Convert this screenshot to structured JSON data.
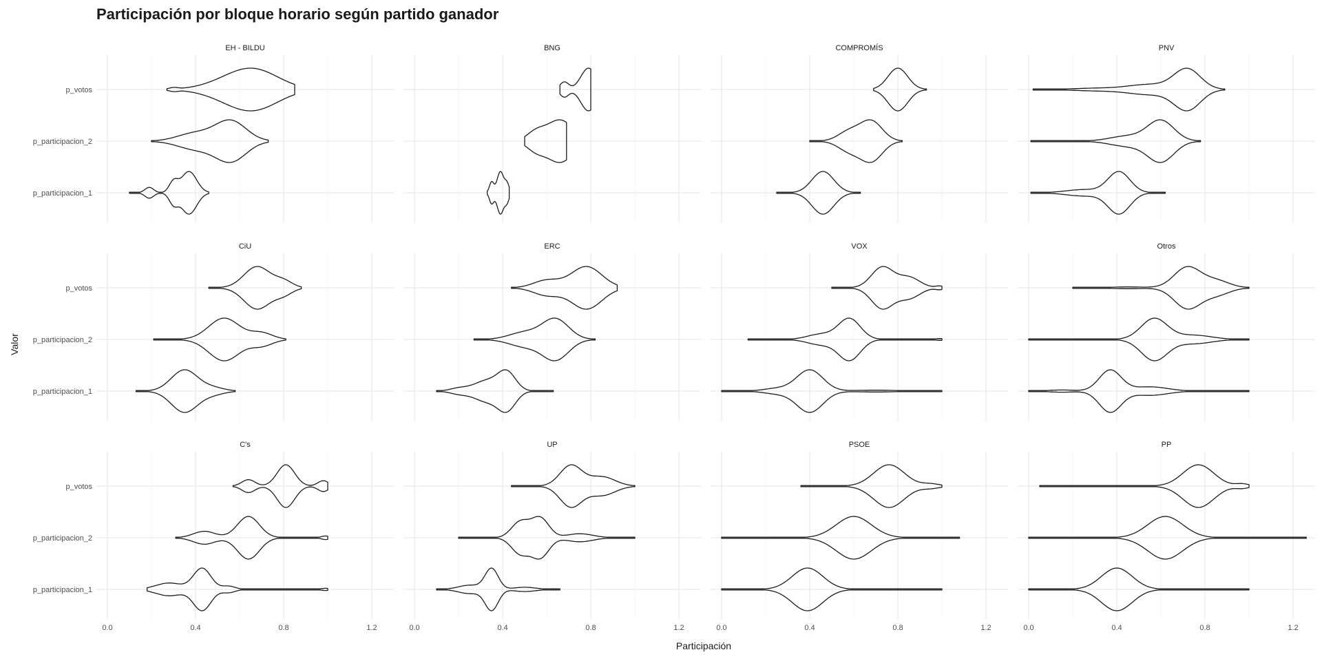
{
  "title": "Participación por bloque horario según partido ganador",
  "chart_data": {
    "type": "violin",
    "title": "Participación por bloque horario según partido ganador",
    "xlabel": "Participación",
    "ylabel": "Valor",
    "xlim": [
      -0.05,
      1.3
    ],
    "x_ticks": [
      "0.0",
      "0.4",
      "0.8",
      "1.2"
    ],
    "x_tick_values": [
      0.0,
      0.4,
      0.8,
      1.2
    ],
    "y_categories": [
      "p_votos",
      "p_participacion_2",
      "p_participacion_1"
    ],
    "grid": true,
    "legend": "none",
    "facets": [
      {
        "name": "EH - BILDU",
        "violins": {
          "p_votos": {
            "min": 0.27,
            "max": 0.85,
            "modes": [
              [
                0.68,
                0.11,
                1.0
              ],
              [
                0.58,
                0.12,
                0.6
              ],
              [
                0.3,
                0.02,
                0.1
              ]
            ]
          },
          "p_participacion_2": {
            "min": 0.2,
            "max": 0.73,
            "modes": [
              [
                0.56,
                0.07,
                1.0
              ],
              [
                0.4,
                0.08,
                0.4
              ]
            ]
          },
          "p_participacion_1": {
            "min": 0.1,
            "max": 0.46,
            "modes": [
              [
                0.37,
                0.035,
                1.0
              ],
              [
                0.3,
                0.02,
                0.5
              ],
              [
                0.19,
                0.02,
                0.25
              ]
            ]
          }
        }
      },
      {
        "name": "BNG",
        "violins": {
          "p_votos": {
            "min": 0.66,
            "max": 0.8,
            "modes": [
              [
                0.79,
                0.035,
                1.0
              ],
              [
                0.68,
                0.02,
                0.35
              ]
            ]
          },
          "p_participacion_2": {
            "min": 0.5,
            "max": 0.69,
            "modes": [
              [
                0.66,
                0.06,
                0.5
              ],
              [
                0.55,
                0.04,
                0.2
              ]
            ]
          },
          "p_participacion_1": {
            "min": 0.33,
            "max": 0.43,
            "modes": [
              [
                0.39,
                0.015,
                1.0
              ],
              [
                0.35,
                0.01,
                0.5
              ],
              [
                0.42,
                0.01,
                0.4
              ]
            ]
          }
        }
      },
      {
        "name": "COMPROMÍS",
        "violins": {
          "p_votos": {
            "min": 0.69,
            "max": 0.93,
            "modes": [
              [
                0.8,
                0.045,
                1.0
              ]
            ]
          },
          "p_participacion_2": {
            "min": 0.4,
            "max": 0.82,
            "modes": [
              [
                0.68,
                0.05,
                1.0
              ],
              [
                0.58,
                0.05,
                0.5
              ]
            ]
          },
          "p_participacion_1": {
            "min": 0.25,
            "max": 0.63,
            "modes": [
              [
                0.46,
                0.05,
                1.0
              ]
            ]
          }
        }
      },
      {
        "name": "PNV",
        "violins": {
          "p_votos": {
            "min": 0.02,
            "max": 0.89,
            "modes": [
              [
                0.72,
                0.06,
                1.0
              ],
              [
                0.55,
                0.1,
                0.25
              ],
              [
                0.3,
                0.1,
                0.06
              ]
            ]
          },
          "p_participacion_2": {
            "min": 0.01,
            "max": 0.78,
            "modes": [
              [
                0.6,
                0.06,
                1.0
              ],
              [
                0.45,
                0.08,
                0.25
              ]
            ]
          },
          "p_participacion_1": {
            "min": 0.01,
            "max": 0.62,
            "modes": [
              [
                0.41,
                0.05,
                1.0
              ],
              [
                0.25,
                0.08,
                0.15
              ]
            ]
          }
        }
      },
      {
        "name": "CiU",
        "violins": {
          "p_votos": {
            "min": 0.46,
            "max": 0.88,
            "modes": [
              [
                0.68,
                0.06,
                1.0
              ],
              [
                0.8,
                0.04,
                0.3
              ]
            ]
          },
          "p_participacion_2": {
            "min": 0.21,
            "max": 0.81,
            "modes": [
              [
                0.53,
                0.07,
                1.0
              ],
              [
                0.7,
                0.05,
                0.3
              ]
            ]
          },
          "p_participacion_1": {
            "min": 0.13,
            "max": 0.58,
            "modes": [
              [
                0.35,
                0.06,
                1.0
              ],
              [
                0.48,
                0.05,
                0.15
              ]
            ]
          }
        }
      },
      {
        "name": "ERC",
        "violins": {
          "p_votos": {
            "min": 0.44,
            "max": 0.92,
            "modes": [
              [
                0.78,
                0.07,
                1.0
              ],
              [
                0.6,
                0.06,
                0.35
              ]
            ]
          },
          "p_participacion_2": {
            "min": 0.27,
            "max": 0.82,
            "modes": [
              [
                0.64,
                0.06,
                1.0
              ],
              [
                0.5,
                0.07,
                0.35
              ]
            ]
          },
          "p_participacion_1": {
            "min": 0.1,
            "max": 0.63,
            "modes": [
              [
                0.42,
                0.04,
                1.0
              ],
              [
                0.33,
                0.06,
                0.6
              ],
              [
                0.2,
                0.04,
                0.15
              ]
            ]
          }
        }
      },
      {
        "name": "VOX",
        "violins": {
          "p_votos": {
            "min": 0.5,
            "max": 1.0,
            "modes": [
              [
                0.73,
                0.05,
                1.0
              ],
              [
                0.85,
                0.05,
                0.5
              ],
              [
                0.99,
                0.02,
                0.08
              ]
            ]
          },
          "p_participacion_2": {
            "min": 0.12,
            "max": 1.0,
            "modes": [
              [
                0.58,
                0.05,
                1.0
              ],
              [
                0.45,
                0.06,
                0.25
              ],
              [
                0.99,
                0.02,
                0.04
              ]
            ]
          },
          "p_participacion_1": {
            "min": 0.0,
            "max": 1.0,
            "modes": [
              [
                0.4,
                0.06,
                1.0
              ],
              [
                0.25,
                0.06,
                0.12
              ],
              [
                0.7,
                0.1,
                0.04
              ]
            ]
          }
        }
      },
      {
        "name": "Otros",
        "violins": {
          "p_votos": {
            "min": 0.2,
            "max": 1.0,
            "modes": [
              [
                0.72,
                0.06,
                1.0
              ],
              [
                0.85,
                0.06,
                0.35
              ],
              [
                0.45,
                0.08,
                0.04
              ]
            ]
          },
          "p_participacion_2": {
            "min": 0.0,
            "max": 1.0,
            "modes": [
              [
                0.57,
                0.06,
                1.0
              ],
              [
                0.75,
                0.08,
                0.2
              ]
            ]
          },
          "p_participacion_1": {
            "min": 0.0,
            "max": 1.0,
            "modes": [
              [
                0.37,
                0.05,
                1.0
              ],
              [
                0.55,
                0.08,
                0.2
              ],
              [
                0.15,
                0.06,
                0.05
              ]
            ]
          }
        }
      },
      {
        "name": "C's",
        "violins": {
          "p_votos": {
            "min": 0.57,
            "max": 1.0,
            "modes": [
              [
                0.81,
                0.04,
                1.0
              ],
              [
                0.64,
                0.03,
                0.3
              ],
              [
                0.98,
                0.025,
                0.25
              ]
            ]
          },
          "p_participacion_2": {
            "min": 0.31,
            "max": 1.0,
            "modes": [
              [
                0.64,
                0.05,
                1.0
              ],
              [
                0.44,
                0.05,
                0.3
              ],
              [
                0.99,
                0.02,
                0.08
              ]
            ]
          },
          "p_participacion_1": {
            "min": 0.18,
            "max": 1.0,
            "modes": [
              [
                0.43,
                0.04,
                1.0
              ],
              [
                0.28,
                0.06,
                0.3
              ],
              [
                0.55,
                0.03,
                0.15
              ],
              [
                0.99,
                0.02,
                0.05
              ]
            ]
          }
        }
      },
      {
        "name": "UP",
        "violins": {
          "p_votos": {
            "min": 0.44,
            "max": 1.0,
            "modes": [
              [
                0.71,
                0.05,
                1.0
              ],
              [
                0.85,
                0.06,
                0.45
              ]
            ]
          },
          "p_participacion_2": {
            "min": 0.2,
            "max": 1.0,
            "modes": [
              [
                0.57,
                0.04,
                1.0
              ],
              [
                0.48,
                0.04,
                0.8
              ],
              [
                0.75,
                0.06,
                0.2
              ]
            ]
          },
          "p_participacion_1": {
            "min": 0.1,
            "max": 0.66,
            "modes": [
              [
                0.35,
                0.03,
                1.0
              ],
              [
                0.25,
                0.05,
                0.2
              ],
              [
                0.5,
                0.05,
                0.1
              ]
            ]
          }
        }
      },
      {
        "name": "PSOE",
        "violins": {
          "p_votos": {
            "min": 0.36,
            "max": 1.0,
            "modes": [
              [
                0.76,
                0.07,
                1.0
              ],
              [
                0.95,
                0.04,
                0.1
              ]
            ]
          },
          "p_participacion_2": {
            "min": 0.0,
            "max": 1.08,
            "modes": [
              [
                0.6,
                0.08,
                1.0
              ]
            ]
          },
          "p_participacion_1": {
            "min": 0.0,
            "max": 1.0,
            "modes": [
              [
                0.39,
                0.07,
                1.0
              ]
            ]
          }
        }
      },
      {
        "name": "PP",
        "violins": {
          "p_votos": {
            "min": 0.05,
            "max": 1.0,
            "modes": [
              [
                0.77,
                0.07,
                1.0
              ],
              [
                0.97,
                0.03,
                0.1
              ]
            ]
          },
          "p_participacion_2": {
            "min": 0.0,
            "max": 1.26,
            "modes": [
              [
                0.62,
                0.08,
                1.0
              ]
            ]
          },
          "p_participacion_1": {
            "min": 0.0,
            "max": 1.0,
            "modes": [
              [
                0.4,
                0.07,
                1.0
              ]
            ]
          }
        }
      }
    ]
  }
}
